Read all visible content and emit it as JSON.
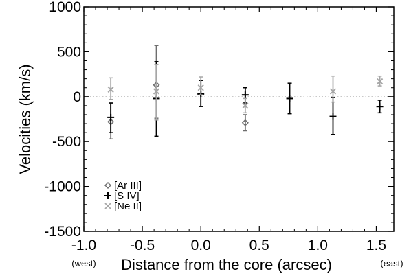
{
  "chart_data": {
    "type": "scatter",
    "xlabel": "Distance from the core (arcsec)",
    "ylabel": "Velocities (km/s)",
    "xlim": [
      -1.0,
      1.65
    ],
    "ylim": [
      -1500,
      1000
    ],
    "x_ticks": [
      -1.0,
      -0.5,
      0.0,
      0.5,
      1.0,
      1.5
    ],
    "x_tick_labels": [
      "-1.0",
      "-0.5",
      "0.0",
      "0.5",
      "1.0",
      "1.5"
    ],
    "y_ticks": [
      -1500,
      -1000,
      -500,
      0,
      500,
      1000
    ],
    "y_tick_labels": [
      "-1500",
      "-1000",
      "-500",
      "0",
      "500",
      "1000"
    ],
    "x_side_labels": {
      "left": "(west)",
      "right": "(east)"
    },
    "zero_line": true,
    "grid": false,
    "legend_position": "lower-left",
    "series": [
      {
        "name": "[Ar III]",
        "marker": "diamond",
        "color": "#6e6e6e",
        "points": [
          {
            "x": -0.77,
            "y": -280,
            "err_low": -470,
            "err_high": -80
          },
          {
            "x": -0.38,
            "y": 130,
            "err_low": -240,
            "err_high": 570
          },
          {
            "x": 0.38,
            "y": -290,
            "err_low": -380,
            "err_high": -200
          }
        ]
      },
      {
        "name": "[S IV]",
        "marker": "plus",
        "color": "#000000",
        "points": [
          {
            "x": -0.77,
            "y": -230,
            "err_low": -400,
            "err_high": -70
          },
          {
            "x": -0.38,
            "y": -20,
            "err_low": -440,
            "err_high": 390
          },
          {
            "x": 0.0,
            "y": 30,
            "err_low": -110,
            "err_high": 180
          },
          {
            "x": 0.38,
            "y": 20,
            "err_low": -70,
            "err_high": 100
          },
          {
            "x": 0.76,
            "y": -20,
            "err_low": -190,
            "err_high": 150
          },
          {
            "x": 1.13,
            "y": -220,
            "err_low": -420,
            "err_high": -10
          },
          {
            "x": 1.53,
            "y": -110,
            "err_low": -180,
            "err_high": -40
          }
        ]
      },
      {
        "name": "[Ne II]",
        "marker": "x",
        "color": "#a6a6a6",
        "points": [
          {
            "x": -0.77,
            "y": 80,
            "err_low": -30,
            "err_high": 210
          },
          {
            "x": -0.38,
            "y": 60,
            "err_low": -260,
            "err_high": 360
          },
          {
            "x": 0.0,
            "y": 100,
            "err_low": 20,
            "err_high": 220
          },
          {
            "x": 0.38,
            "y": -100,
            "err_low": -180,
            "err_high": -20
          },
          {
            "x": 1.13,
            "y": 60,
            "err_low": -60,
            "err_high": 230
          },
          {
            "x": 1.53,
            "y": 170,
            "err_low": 120,
            "err_high": 230
          }
        ]
      }
    ]
  }
}
